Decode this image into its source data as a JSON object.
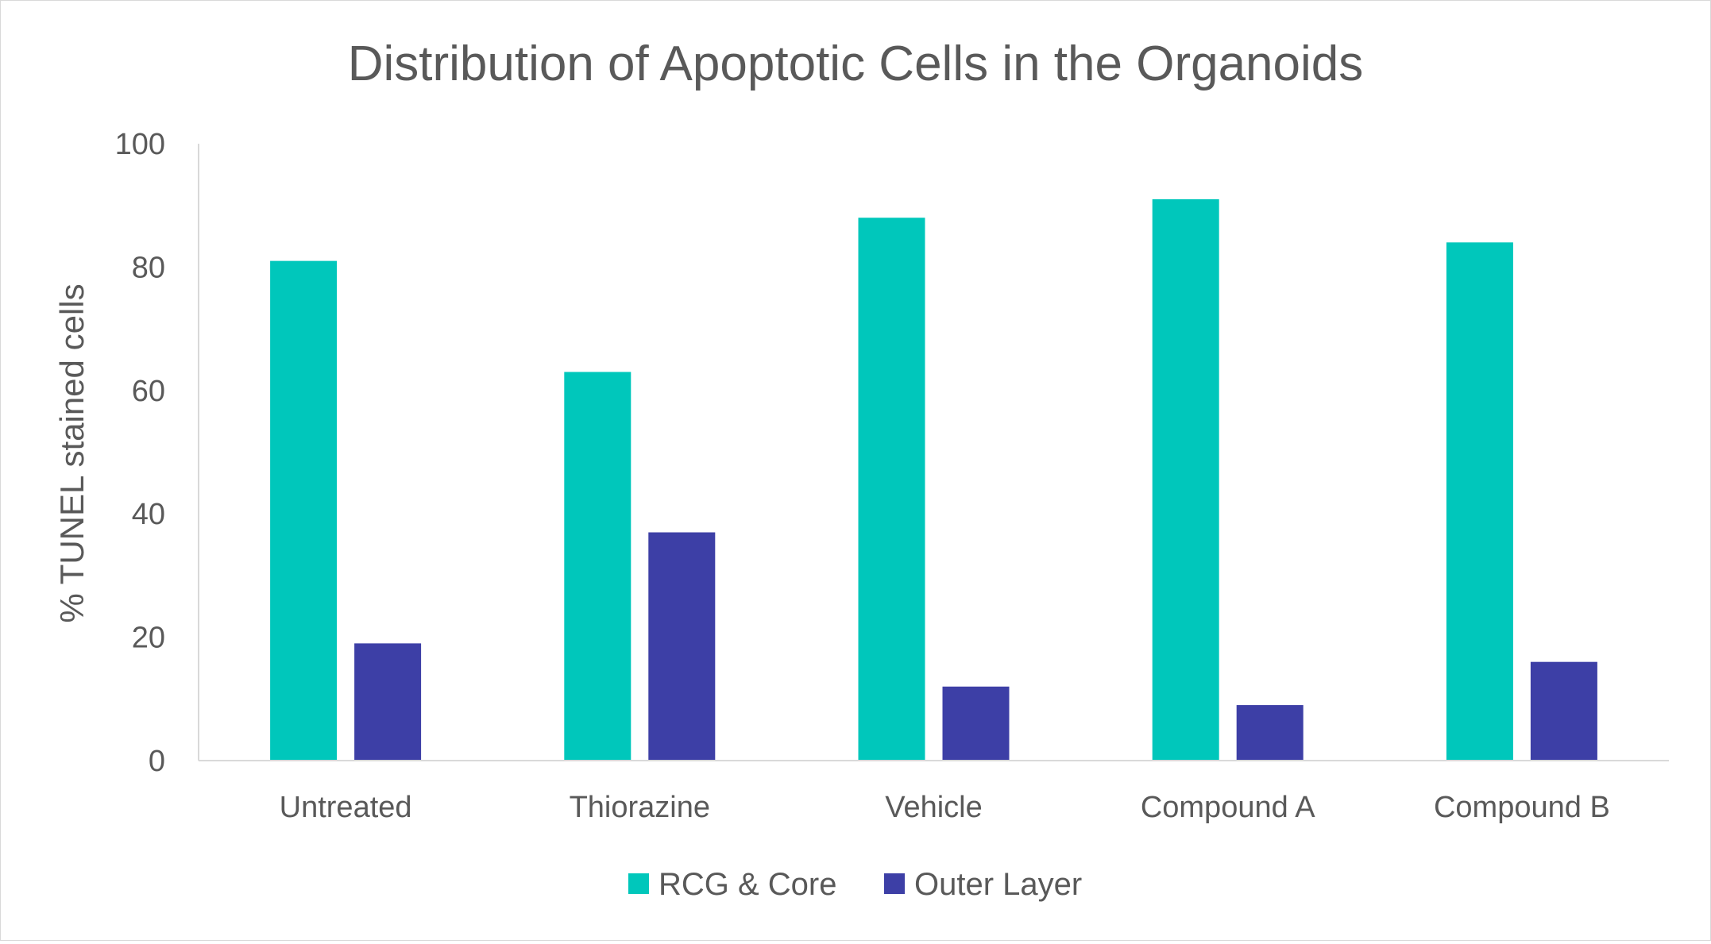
{
  "chart_data": {
    "type": "bar",
    "title": "Distribution of Apoptotic Cells in the Organoids",
    "xlabel": "",
    "ylabel": "% TUNEL stained cells",
    "categories": [
      "Untreated",
      "Thiorazine",
      "Vehicle",
      "Compound A",
      "Compound B"
    ],
    "series": [
      {
        "name": "RCG & Core",
        "values": [
          81,
          63,
          88,
          91,
          84
        ],
        "color": "#00c7bb"
      },
      {
        "name": "Outer Layer",
        "values": [
          19,
          37,
          12,
          9,
          16
        ],
        "color": "#3d3fa6"
      }
    ],
    "yticks": [
      "0",
      "20",
      "40",
      "60",
      "80",
      "100"
    ],
    "ylim": [
      0,
      100
    ],
    "grid": false,
    "legend_position": "bottom"
  }
}
